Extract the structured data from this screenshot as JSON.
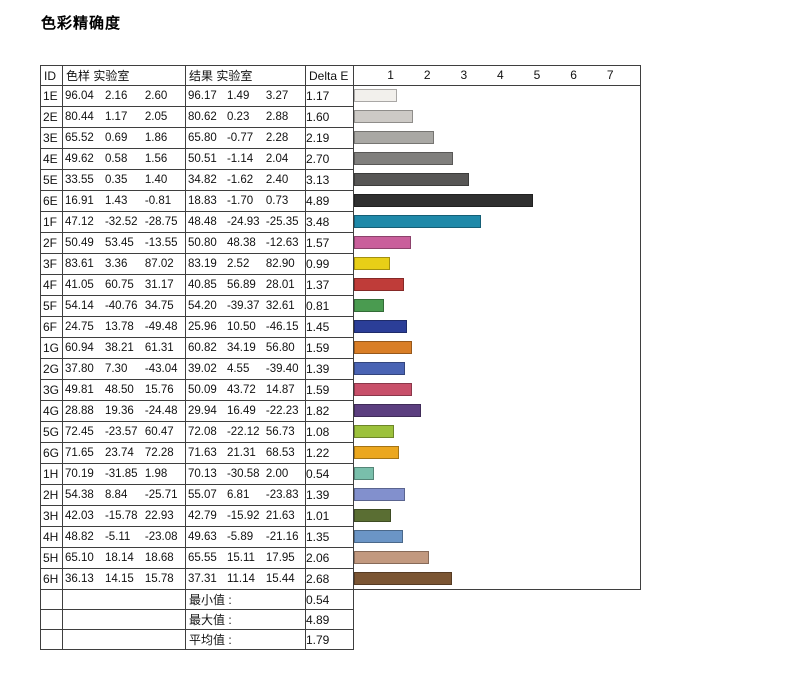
{
  "page_title": "色彩精确度",
  "table": {
    "headers": {
      "id": "ID",
      "sample": "色样 实验室",
      "result": "结果 实验室",
      "delta_e": "Delta E"
    },
    "axis": {
      "ticks": [
        "1",
        "2",
        "3",
        "4",
        "5",
        "6",
        "7"
      ],
      "min": 0,
      "max": 7.8
    },
    "rows": [
      {
        "id": "1E",
        "sample": [
          "96.04",
          "2.16",
          "2.60"
        ],
        "result": [
          "96.17",
          "1.49",
          "3.27"
        ],
        "delta_e": "1.17"
      },
      {
        "id": "2E",
        "sample": [
          "80.44",
          "1.17",
          "2.05"
        ],
        "result": [
          "80.62",
          "0.23",
          "2.88"
        ],
        "delta_e": "1.60"
      },
      {
        "id": "3E",
        "sample": [
          "65.52",
          "0.69",
          "1.86"
        ],
        "result": [
          "65.80",
          "-0.77",
          "2.28"
        ],
        "delta_e": "2.19"
      },
      {
        "id": "4E",
        "sample": [
          "49.62",
          "0.58",
          "1.56"
        ],
        "result": [
          "50.51",
          "-1.14",
          "2.04"
        ],
        "delta_e": "2.70"
      },
      {
        "id": "5E",
        "sample": [
          "33.55",
          "0.35",
          "1.40"
        ],
        "result": [
          "34.82",
          "-1.62",
          "2.40"
        ],
        "delta_e": "3.13"
      },
      {
        "id": "6E",
        "sample": [
          "16.91",
          "1.43",
          "-0.81"
        ],
        "result": [
          "18.83",
          "-1.70",
          "0.73"
        ],
        "delta_e": "4.89"
      },
      {
        "id": "1F",
        "sample": [
          "47.12",
          "-32.52",
          "-28.75"
        ],
        "result": [
          "48.48",
          "-24.93",
          "-25.35"
        ],
        "delta_e": "3.48"
      },
      {
        "id": "2F",
        "sample": [
          "50.49",
          "53.45",
          "-13.55"
        ],
        "result": [
          "50.80",
          "48.38",
          "-12.63"
        ],
        "delta_e": "1.57"
      },
      {
        "id": "3F",
        "sample": [
          "83.61",
          "3.36",
          "87.02"
        ],
        "result": [
          "83.19",
          "2.52",
          "82.90"
        ],
        "delta_e": "0.99"
      },
      {
        "id": "4F",
        "sample": [
          "41.05",
          "60.75",
          "31.17"
        ],
        "result": [
          "40.85",
          "56.89",
          "28.01"
        ],
        "delta_e": "1.37"
      },
      {
        "id": "5F",
        "sample": [
          "54.14",
          "-40.76",
          "34.75"
        ],
        "result": [
          "54.20",
          "-39.37",
          "32.61"
        ],
        "delta_e": "0.81"
      },
      {
        "id": "6F",
        "sample": [
          "24.75",
          "13.78",
          "-49.48"
        ],
        "result": [
          "25.96",
          "10.50",
          "-46.15"
        ],
        "delta_e": "1.45"
      },
      {
        "id": "1G",
        "sample": [
          "60.94",
          "38.21",
          "61.31"
        ],
        "result": [
          "60.82",
          "34.19",
          "56.80"
        ],
        "delta_e": "1.59"
      },
      {
        "id": "2G",
        "sample": [
          "37.80",
          "7.30",
          "-43.04"
        ],
        "result": [
          "39.02",
          "4.55",
          "-39.40"
        ],
        "delta_e": "1.39"
      },
      {
        "id": "3G",
        "sample": [
          "49.81",
          "48.50",
          "15.76"
        ],
        "result": [
          "50.09",
          "43.72",
          "14.87"
        ],
        "delta_e": "1.59"
      },
      {
        "id": "4G",
        "sample": [
          "28.88",
          "19.36",
          "-24.48"
        ],
        "result": [
          "29.94",
          "16.49",
          "-22.23"
        ],
        "delta_e": "1.82"
      },
      {
        "id": "5G",
        "sample": [
          "72.45",
          "-23.57",
          "60.47"
        ],
        "result": [
          "72.08",
          "-22.12",
          "56.73"
        ],
        "delta_e": "1.08"
      },
      {
        "id": "6G",
        "sample": [
          "71.65",
          "23.74",
          "72.28"
        ],
        "result": [
          "71.63",
          "21.31",
          "68.53"
        ],
        "delta_e": "1.22"
      },
      {
        "id": "1H",
        "sample": [
          "70.19",
          "-31.85",
          "1.98"
        ],
        "result": [
          "70.13",
          "-30.58",
          "2.00"
        ],
        "delta_e": "0.54"
      },
      {
        "id": "2H",
        "sample": [
          "54.38",
          "8.84",
          "-25.71"
        ],
        "result": [
          "55.07",
          "6.81",
          "-23.83"
        ],
        "delta_e": "1.39"
      },
      {
        "id": "3H",
        "sample": [
          "42.03",
          "-15.78",
          "22.93"
        ],
        "result": [
          "42.79",
          "-15.92",
          "21.63"
        ],
        "delta_e": "1.01"
      },
      {
        "id": "4H",
        "sample": [
          "48.82",
          "-5.11",
          "-23.08"
        ],
        "result": [
          "49.63",
          "-5.89",
          "-21.16"
        ],
        "delta_e": "1.35"
      },
      {
        "id": "5H",
        "sample": [
          "65.10",
          "18.14",
          "18.68"
        ],
        "result": [
          "65.55",
          "15.11",
          "17.95"
        ],
        "delta_e": "2.06"
      },
      {
        "id": "6H",
        "sample": [
          "36.13",
          "14.15",
          "15.78"
        ],
        "result": [
          "37.31",
          "11.14",
          "15.44"
        ],
        "delta_e": "2.68"
      }
    ],
    "summary": [
      {
        "label": "最小值 :",
        "value": "0.54"
      },
      {
        "label": "最大值 :",
        "value": "4.89"
      },
      {
        "label": "平均值 :",
        "value": "1.79"
      }
    ]
  },
  "chart_data": {
    "type": "bar",
    "orientation": "horizontal",
    "title": "色彩精确度",
    "categories": [
      "1E",
      "2E",
      "3E",
      "4E",
      "5E",
      "6E",
      "1F",
      "2F",
      "3F",
      "4F",
      "5F",
      "6F",
      "1G",
      "2G",
      "3G",
      "4G",
      "5G",
      "6G",
      "1H",
      "2H",
      "3H",
      "4H",
      "5H",
      "6H"
    ],
    "values": [
      1.17,
      1.6,
      2.19,
      2.7,
      3.13,
      4.89,
      3.48,
      1.57,
      0.99,
      1.37,
      0.81,
      1.45,
      1.59,
      1.39,
      1.59,
      1.82,
      1.08,
      1.22,
      0.54,
      1.39,
      1.01,
      1.35,
      2.06,
      2.68
    ],
    "bar_colors": [
      "#f2f0ec",
      "#cdcac6",
      "#a9a8a4",
      "#807f7d",
      "#575655",
      "#303030",
      "#1f89a9",
      "#c95f9b",
      "#e8cf17",
      "#bf3c39",
      "#4a9b50",
      "#2b3e98",
      "#d97e27",
      "#4a64b4",
      "#c8506a",
      "#5c3f80",
      "#9cc13c",
      "#eba71f",
      "#79bfab",
      "#8290cd",
      "#5a6e33",
      "#6b95c6",
      "#c2997f",
      "#7b5533"
    ],
    "xlabel": "Delta E",
    "xlim": [
      0,
      7.8
    ],
    "ticks": [
      1,
      2,
      3,
      4,
      5,
      6,
      7
    ],
    "grid": false,
    "legend": false,
    "summary": {
      "min": 0.54,
      "max": 4.89,
      "mean": 1.79
    }
  }
}
